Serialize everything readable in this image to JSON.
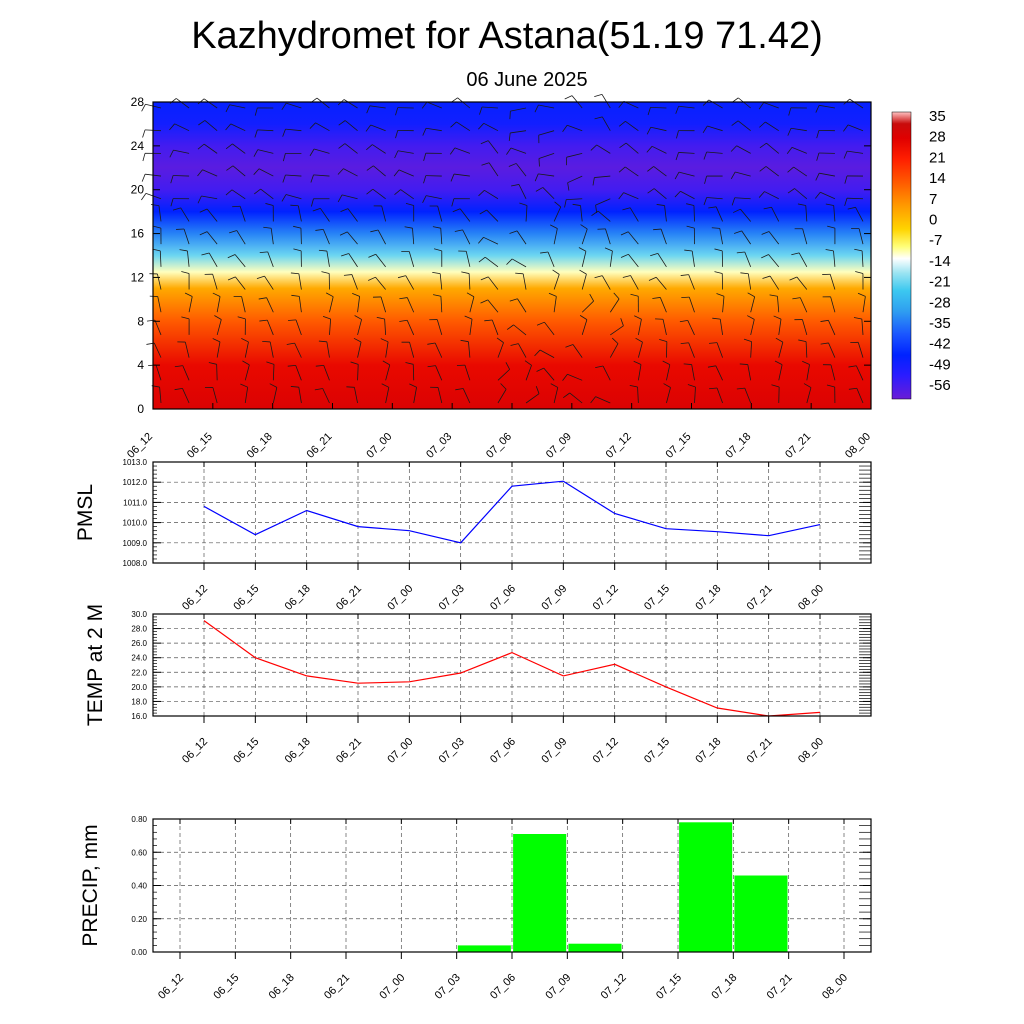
{
  "title": "Kazhydromet for Astana(51.19 71.42)",
  "subtitle": "06 June 2025",
  "time_labels": [
    "06_12",
    "06_15",
    "06_18",
    "06_21",
    "07_00",
    "07_03",
    "07_06",
    "07_09",
    "07_12",
    "07_15",
    "07_18",
    "07_21",
    "08_00"
  ],
  "chart_data": [
    {
      "type": "heatmap",
      "x": [
        "06_12",
        "06_15",
        "06_18",
        "06_21",
        "07_00",
        "07_03",
        "07_06",
        "07_09",
        "07_12",
        "07_15",
        "07_18",
        "07_21",
        "08_00"
      ],
      "y_ticks": [
        "0",
        "4",
        "8",
        "12",
        "16",
        "20",
        "24",
        "28"
      ],
      "ylim": [
        0,
        28
      ],
      "colorbar_labels": [
        "35",
        "28",
        "21",
        "14",
        "7",
        "0",
        "-7",
        "-14",
        "-21",
        "-28",
        "-35",
        "-42",
        "-49",
        "-56"
      ],
      "color_scale": {
        "min": -60,
        "max": 38
      },
      "temperature_profile": [
        {
          "level": 0,
          "value": 30
        },
        {
          "level": 4,
          "value": 27
        },
        {
          "level": 8,
          "value": 14
        },
        {
          "level": 11,
          "value": 4
        },
        {
          "level": 12.5,
          "value": -10
        },
        {
          "level": 14,
          "value": -20
        },
        {
          "level": 16,
          "value": -33
        },
        {
          "level": 18,
          "value": -45
        },
        {
          "level": 20,
          "value": -55
        },
        {
          "level": 22,
          "value": -58
        },
        {
          "level": 24,
          "value": -55
        },
        {
          "level": 26,
          "value": -48
        },
        {
          "level": 28,
          "value": -46
        }
      ],
      "wind_barbs": true
    },
    {
      "type": "line",
      "ylabel": "PMSL",
      "x": [
        "06_12",
        "06_15",
        "06_18",
        "06_21",
        "07_00",
        "07_03",
        "07_06",
        "07_09",
        "07_12",
        "07_15",
        "07_18",
        "07_21",
        "08_00"
      ],
      "y_ticks": [
        "1008.0",
        "1009.0",
        "1010.0",
        "1011.0",
        "1012.0",
        "1013.0"
      ],
      "ylim": [
        1008,
        1013
      ],
      "values": [
        1010.8,
        1009.4,
        1010.6,
        1009.8,
        1009.6,
        1009.0,
        1011.8,
        1012.05,
        1010.45,
        1009.7,
        1009.55,
        1009.35,
        1009.9
      ],
      "color": "#0000ff",
      "grid": true
    },
    {
      "type": "line",
      "ylabel": "TEMP at 2 M",
      "x": [
        "06_12",
        "06_15",
        "06_18",
        "06_21",
        "07_00",
        "07_03",
        "07_06",
        "07_09",
        "07_12",
        "07_15",
        "07_18",
        "07_21",
        "08_00"
      ],
      "y_ticks": [
        "16.0",
        "18.0",
        "20.0",
        "22.0",
        "24.0",
        "26.0",
        "28.0",
        "30.0"
      ],
      "ylim": [
        16,
        30
      ],
      "values": [
        29.1,
        24.0,
        21.5,
        20.5,
        20.7,
        21.9,
        24.7,
        21.5,
        23.1,
        20.0,
        17.1,
        16.0,
        16.5
      ],
      "color": "#ff0000",
      "grid": true
    },
    {
      "type": "bar",
      "ylabel": "PRECIP, mm",
      "categories": [
        "06_12",
        "06_15",
        "06_18",
        "06_21",
        "07_00",
        "07_03",
        "07_06",
        "07_09",
        "07_12",
        "07_15",
        "07_18",
        "07_21",
        "08_00"
      ],
      "y_ticks": [
        "0.00",
        "0.20",
        "0.40",
        "0.60",
        "0.80"
      ],
      "ylim": [
        0,
        0.8
      ],
      "values": [
        0,
        0,
        0,
        0,
        0,
        0,
        0.04,
        0.71,
        0.05,
        0,
        0.78,
        0.46,
        0
      ],
      "color": "#00ff00",
      "grid": true
    }
  ]
}
